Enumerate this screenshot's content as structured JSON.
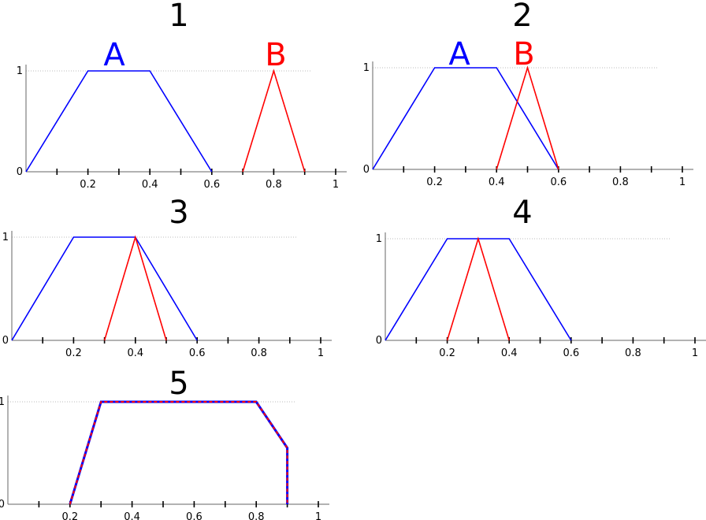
{
  "chart_data": [
    {
      "type": "line",
      "title": "1",
      "xlim": [
        0,
        1
      ],
      "ylim": [
        0,
        1
      ],
      "x_tick_labels": [
        "0.2",
        "0.4",
        "0.6",
        "0.8",
        "1"
      ],
      "y_tick_labels": [
        "0",
        "1"
      ],
      "series": [
        {
          "name": "A",
          "color": "#0000ff",
          "x": [
            0,
            0.2,
            0.4,
            0.6
          ],
          "y": [
            0,
            1,
            1,
            0
          ]
        },
        {
          "name": "B",
          "color": "#ff0000",
          "x": [
            0.7,
            0.8,
            0.9
          ],
          "y": [
            0,
            1,
            0
          ]
        }
      ]
    },
    {
      "type": "line",
      "title": "2",
      "xlim": [
        0,
        1
      ],
      "ylim": [
        0,
        1
      ],
      "x_tick_labels": [
        "0.2",
        "0.4",
        "0.6",
        "0.8",
        "1"
      ],
      "y_tick_labels": [
        "0",
        "1"
      ],
      "series": [
        {
          "name": "A",
          "color": "#0000ff",
          "x": [
            0,
            0.2,
            0.4,
            0.6
          ],
          "y": [
            0,
            1,
            1,
            0
          ]
        },
        {
          "name": "B",
          "color": "#ff0000",
          "x": [
            0.4,
            0.5,
            0.6
          ],
          "y": [
            0,
            1,
            0
          ]
        }
      ]
    },
    {
      "type": "line",
      "title": "3",
      "xlim": [
        0,
        1
      ],
      "ylim": [
        0,
        1
      ],
      "x_tick_labels": [
        "0.2",
        "0.4",
        "0.6",
        "0.8",
        "1"
      ],
      "y_tick_labels": [
        "0",
        "1"
      ],
      "series": [
        {
          "color": "#0000ff",
          "x": [
            0,
            0.2,
            0.4,
            0.6
          ],
          "y": [
            0,
            1,
            1,
            0
          ]
        },
        {
          "color": "#ff0000",
          "x": [
            0.3,
            0.4,
            0.5
          ],
          "y": [
            0,
            1,
            0
          ]
        }
      ]
    },
    {
      "type": "line",
      "title": "4",
      "xlim": [
        0,
        1
      ],
      "ylim": [
        0,
        1
      ],
      "x_tick_labels": [
        "0.2",
        "0.4",
        "0.6",
        "0.8",
        "1"
      ],
      "y_tick_labels": [
        "0",
        "1"
      ],
      "series": [
        {
          "color": "#0000ff",
          "x": [
            0,
            0.2,
            0.4,
            0.6
          ],
          "y": [
            0,
            1,
            1,
            0
          ]
        },
        {
          "color": "#ff0000",
          "x": [
            0.2,
            0.3,
            0.4
          ],
          "y": [
            0,
            1,
            0
          ]
        }
      ]
    },
    {
      "type": "line",
      "title": "5",
      "xlim": [
        0,
        1
      ],
      "ylim": [
        0,
        1
      ],
      "x_tick_labels": [
        "0.2",
        "0.4",
        "0.6",
        "0.8",
        "1"
      ],
      "y_tick_labels": [
        "0",
        "1"
      ],
      "series": [
        {
          "color": "#0000ff",
          "x": [
            0.2,
            0.3,
            0.8,
            0.9,
            0.9
          ],
          "y": [
            0,
            1,
            1,
            0.55,
            0
          ]
        },
        {
          "color": "#ff0000",
          "dashed": true,
          "x": [
            0.2,
            0.3,
            0.8,
            0.9,
            0.9
          ],
          "y": [
            0,
            1,
            1,
            0.55,
            0
          ]
        }
      ]
    }
  ]
}
